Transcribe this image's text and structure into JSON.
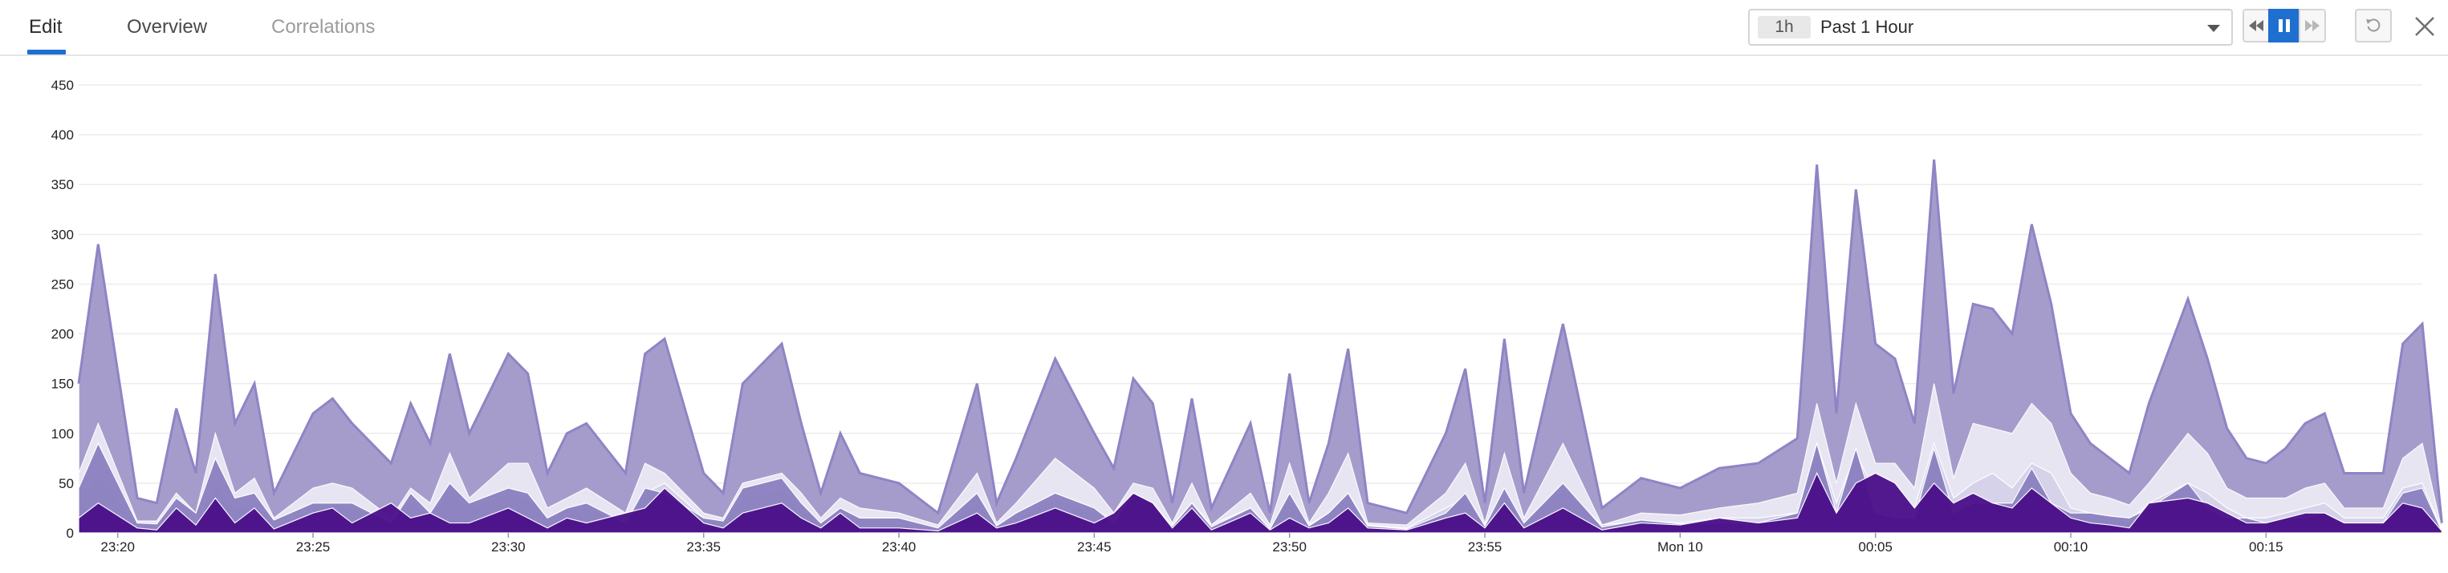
{
  "tabs": [
    {
      "label": "Edit",
      "state": "active"
    },
    {
      "label": "Overview",
      "state": "normal"
    },
    {
      "label": "Correlations",
      "state": "muted"
    }
  ],
  "time_picker": {
    "badge": "1h",
    "label": "Past 1 Hour"
  },
  "controls": [
    {
      "name": "rewind-button",
      "icon": "rewind-icon"
    },
    {
      "name": "pause-button",
      "icon": "pause-icon",
      "active": true
    },
    {
      "name": "fast-forward-button",
      "icon": "fast-forward-icon"
    },
    {
      "name": "reset-button",
      "icon": "reset-icon"
    }
  ],
  "close_icon": "close-icon",
  "colors": {
    "accent": "#1f6fd1",
    "series": [
      "#4b0f8a",
      "#a69ccc",
      "#ece9f6",
      "#7866b4",
      "#d6d2ea",
      "#5e2a9c",
      "#c4bde0",
      "#8c80c0"
    ]
  },
  "chart_data": {
    "type": "area",
    "stacked": true,
    "title": "",
    "xlabel": "",
    "ylabel": "",
    "ylim": [
      0,
      450
    ],
    "y_ticks": [
      0,
      50,
      100,
      150,
      200,
      250,
      300,
      350,
      400,
      450
    ],
    "x_range": [
      "23:19",
      "00:19"
    ],
    "x_ticks": [
      {
        "t": "23:20",
        "label": "23:20"
      },
      {
        "t": "23:25",
        "label": "23:25"
      },
      {
        "t": "23:30",
        "label": "23:30"
      },
      {
        "t": "23:35",
        "label": "23:35"
      },
      {
        "t": "23:40",
        "label": "23:40"
      },
      {
        "t": "23:45",
        "label": "23:45"
      },
      {
        "t": "23:50",
        "label": "23:50"
      },
      {
        "t": "23:55",
        "label": "23:55"
      },
      {
        "t": "00:00",
        "label": "Mon 10"
      },
      {
        "t": "00:05",
        "label": "00:05"
      },
      {
        "t": "00:10",
        "label": "00:10"
      },
      {
        "t": "00:15",
        "label": "00:15"
      }
    ],
    "grid": true,
    "legend": "none",
    "total_outline_points": [
      [
        "23:19",
        150
      ],
      [
        "23:19:30",
        290
      ],
      [
        "23:20:30",
        35
      ],
      [
        "23:21",
        30
      ],
      [
        "23:21:30",
        125
      ],
      [
        "23:22",
        60
      ],
      [
        "23:22:30",
        260
      ],
      [
        "23:23",
        110
      ],
      [
        "23:23:30",
        150
      ],
      [
        "23:24",
        40
      ],
      [
        "23:25",
        120
      ],
      [
        "23:25:30",
        135
      ],
      [
        "23:26",
        110
      ],
      [
        "23:27",
        70
      ],
      [
        "23:27:30",
        130
      ],
      [
        "23:28",
        90
      ],
      [
        "23:28:30",
        180
      ],
      [
        "23:29",
        100
      ],
      [
        "23:30",
        180
      ],
      [
        "23:30:30",
        160
      ],
      [
        "23:31",
        60
      ],
      [
        "23:31:30",
        100
      ],
      [
        "23:32",
        110
      ],
      [
        "23:33",
        60
      ],
      [
        "23:33:30",
        180
      ],
      [
        "23:34",
        195
      ],
      [
        "23:35",
        60
      ],
      [
        "23:35:30",
        40
      ],
      [
        "23:36",
        150
      ],
      [
        "23:37",
        190
      ],
      [
        "23:37:30",
        110
      ],
      [
        "23:38",
        40
      ],
      [
        "23:38:30",
        100
      ],
      [
        "23:39",
        60
      ],
      [
        "23:40",
        50
      ],
      [
        "23:41",
        20
      ],
      [
        "23:42",
        150
      ],
      [
        "23:42:30",
        30
      ],
      [
        "23:43",
        75
      ],
      [
        "23:44",
        175
      ],
      [
        "23:45",
        100
      ],
      [
        "23:45:30",
        65
      ],
      [
        "23:46",
        155
      ],
      [
        "23:46:30",
        130
      ],
      [
        "23:47",
        30
      ],
      [
        "23:47:30",
        135
      ],
      [
        "23:48",
        25
      ],
      [
        "23:49",
        110
      ],
      [
        "23:49:30",
        20
      ],
      [
        "23:50",
        160
      ],
      [
        "23:50:30",
        30
      ],
      [
        "23:51",
        90
      ],
      [
        "23:51:30",
        185
      ],
      [
        "23:52",
        30
      ],
      [
        "23:53",
        20
      ],
      [
        "23:54",
        100
      ],
      [
        "23:54:30",
        165
      ],
      [
        "23:55",
        30
      ],
      [
        "23:55:30",
        195
      ],
      [
        "23:56",
        40
      ],
      [
        "23:57",
        210
      ],
      [
        "23:58",
        25
      ],
      [
        "23:59",
        55
      ],
      [
        "00:00",
        45
      ],
      [
        "00:01",
        65
      ],
      [
        "00:02",
        70
      ],
      [
        "00:03",
        95
      ],
      [
        "00:03:30",
        370
      ],
      [
        "00:04",
        120
      ],
      [
        "00:04:30",
        345
      ],
      [
        "00:05",
        190
      ],
      [
        "00:05:30",
        175
      ],
      [
        "00:06",
        110
      ],
      [
        "00:06:30",
        375
      ],
      [
        "00:07",
        140
      ],
      [
        "00:07:30",
        230
      ],
      [
        "00:08",
        225
      ],
      [
        "00:08:30",
        200
      ],
      [
        "00:09",
        310
      ],
      [
        "00:09:30",
        230
      ],
      [
        "00:10",
        120
      ],
      [
        "00:10:30",
        90
      ],
      [
        "00:11",
        75
      ],
      [
        "00:11:30",
        60
      ],
      [
        "00:12",
        130
      ],
      [
        "00:13",
        235
      ],
      [
        "00:13:30",
        175
      ],
      [
        "00:14",
        105
      ],
      [
        "00:14:30",
        75
      ],
      [
        "00:15",
        70
      ],
      [
        "00:15:30",
        85
      ],
      [
        "00:16",
        110
      ],
      [
        "00:16:30",
        120
      ],
      [
        "00:17",
        60
      ],
      [
        "00:18",
        60
      ],
      [
        "00:18:30",
        190
      ],
      [
        "00:19",
        210
      ],
      [
        "00:19:30",
        10
      ]
    ],
    "series": [
      {
        "values_note": "dark",
        "values": [
          15,
          30,
          5,
          3,
          25,
          8,
          35,
          10,
          25,
          4,
          20,
          25,
          10,
          30,
          15,
          20,
          10,
          10,
          25,
          15,
          5,
          15,
          10,
          20,
          25,
          45,
          10,
          5,
          20,
          30,
          15,
          5,
          20,
          5,
          5,
          2,
          20,
          5,
          10,
          25,
          10,
          20,
          40,
          30,
          5,
          25,
          3,
          20,
          3,
          15,
          5,
          10,
          25,
          5,
          3,
          15,
          20,
          5,
          30,
          5,
          25,
          3,
          10,
          8,
          15,
          10,
          15,
          60,
          20,
          50,
          60,
          50,
          25,
          50,
          30,
          40,
          30,
          25,
          45,
          30,
          15,
          10,
          8,
          5,
          30,
          35,
          30,
          20,
          10,
          10,
          15,
          20,
          20,
          10,
          10,
          30,
          25,
          2
        ]
      },
      {
        "values_note": "mid",
        "values": [
          30,
          60,
          8,
          6,
          25,
          12,
          50,
          25,
          30,
          8,
          25,
          30,
          25,
          15,
          30,
          20,
          40,
          25,
          40,
          35,
          15,
          25,
          25,
          10,
          40,
          50,
          15,
          8,
          35,
          45,
          25,
          10,
          20,
          15,
          10,
          5,
          30,
          8,
          15,
          35,
          20,
          15,
          25,
          25,
          8,
          30,
          8,
          25,
          5,
          35,
          8,
          20,
          40,
          8,
          5,
          25,
          35,
          8,
          40,
          10,
          45,
          8,
          12,
          10,
          15,
          15,
          20,
          90,
          30,
          80,
          40,
          40,
          25,
          90,
          35,
          50,
          60,
          45,
          70,
          60,
          25,
          20,
          15,
          12,
          30,
          50,
          40,
          25,
          15,
          15,
          20,
          25,
          30,
          15,
          15,
          45,
          50,
          3
        ]
      },
      {
        "values_note": "light",
        "values": [
          60,
          110,
          12,
          12,
          40,
          20,
          100,
          40,
          55,
          15,
          45,
          50,
          45,
          15,
          45,
          30,
          80,
          35,
          70,
          70,
          25,
          35,
          45,
          20,
          70,
          60,
          20,
          15,
          50,
          60,
          40,
          15,
          35,
          25,
          20,
          8,
          60,
          10,
          30,
          75,
          45,
          20,
          50,
          45,
          10,
          50,
          8,
          40,
          8,
          70,
          10,
          40,
          80,
          10,
          8,
          40,
          70,
          10,
          80,
          15,
          90,
          8,
          20,
          18,
          25,
          30,
          40,
          130,
          50,
          130,
          70,
          70,
          45,
          150,
          55,
          110,
          105,
          100,
          130,
          110,
          60,
          40,
          35,
          28,
          50,
          100,
          80,
          45,
          35,
          35,
          35,
          45,
          50,
          25,
          25,
          75,
          90,
          3
        ]
      },
      {
        "values_note": "medium-purple",
        "values": [
          45,
          90,
          10,
          9,
          35,
          20,
          75,
          35,
          40,
          13,
          30,
          30,
          30,
          10,
          40,
          20,
          50,
          30,
          45,
          40,
          15,
          25,
          30,
          10,
          45,
          40,
          15,
          12,
          45,
          55,
          30,
          10,
          25,
          15,
          15,
          5,
          40,
          7,
          20,
          40,
          25,
          10,
          40,
          30,
          7,
          30,
          6,
          25,
          4,
          40,
          7,
          20,
          40,
          7,
          4,
          20,
          40,
          7,
          45,
          10,
          50,
          6,
          13,
          9,
          10,
          10,
          20,
          90,
          20,
          85,
          20,
          15,
          15,
          85,
          20,
          30,
          30,
          30,
          65,
          30,
          20,
          20,
          17,
          15,
          25,
          50,
          25,
          15,
          15,
          10,
          15,
          15,
          20,
          10,
          10,
          40,
          45,
          2
        ]
      }
    ]
  }
}
